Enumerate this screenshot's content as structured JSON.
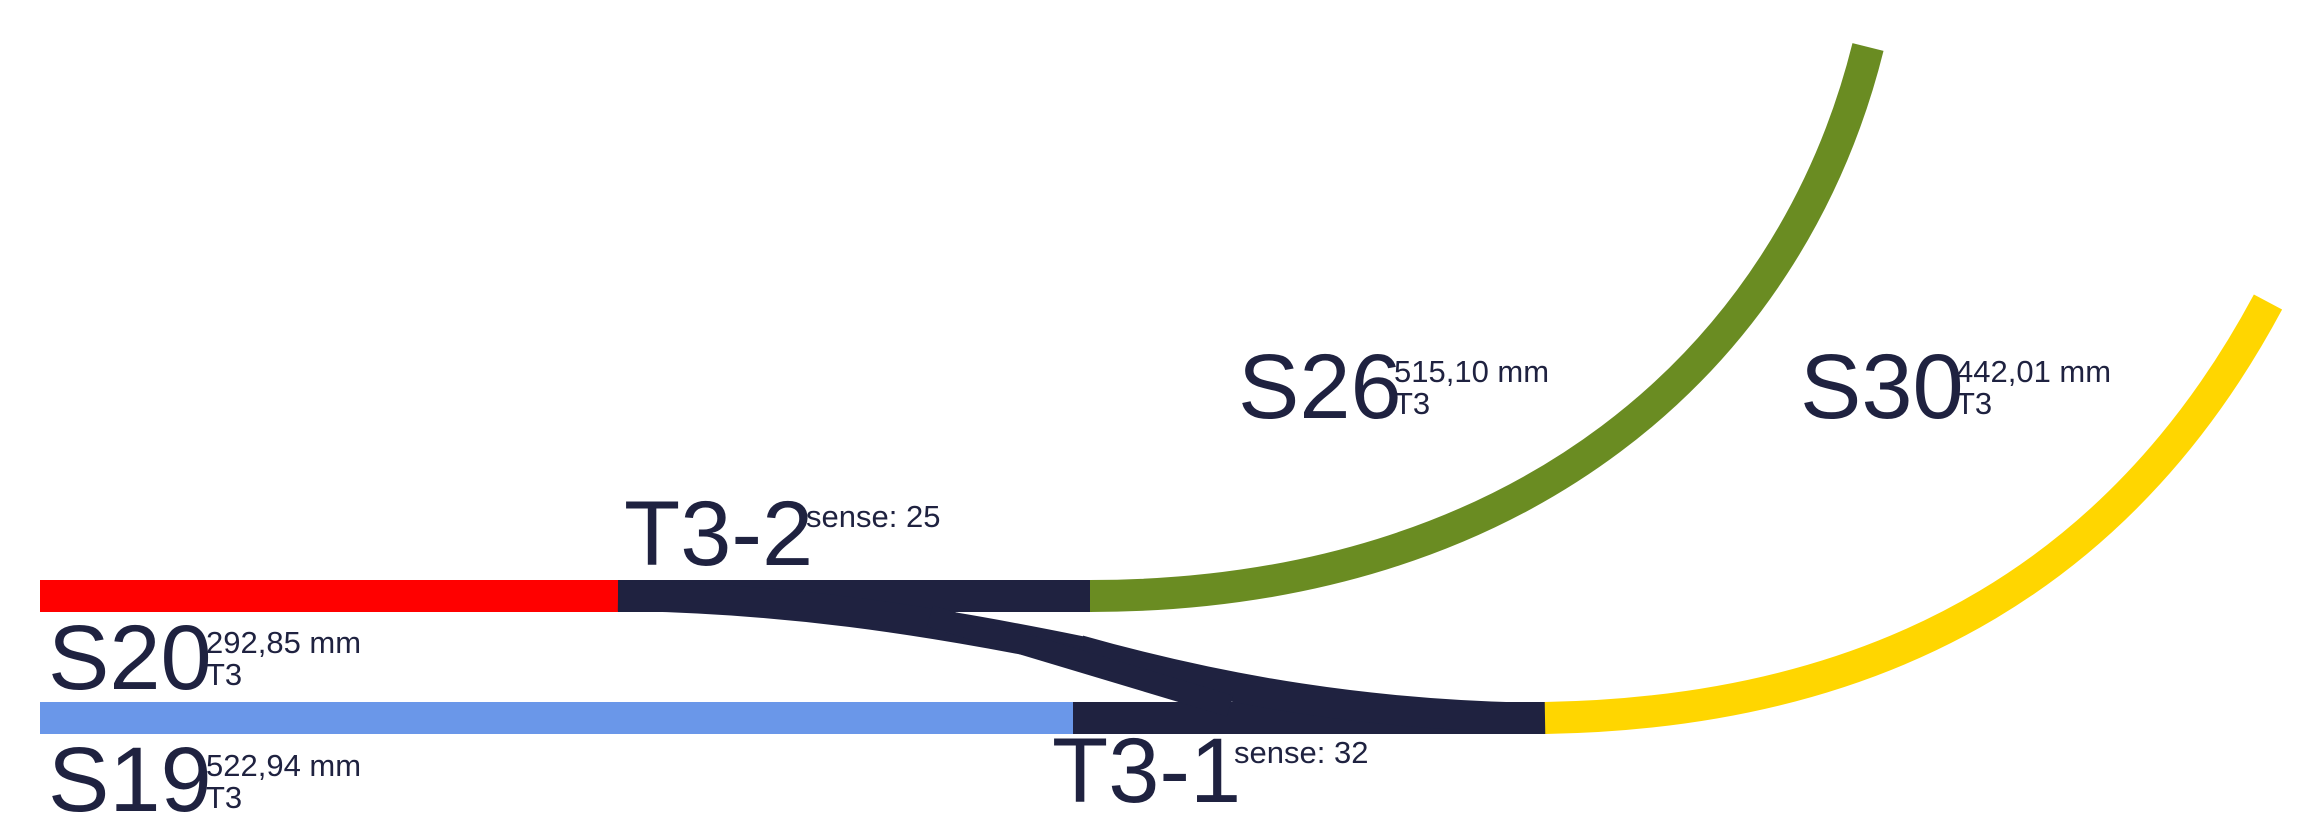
{
  "colors": {
    "ink": "#1f2240",
    "S20": "#ff0000",
    "S19": "#6a97e9",
    "S26": "#6a8c22",
    "S30": "#ffd600",
    "turnout": "#1f2240"
  },
  "segments": {
    "S20": {
      "name": "S20",
      "length": "292,85 mm",
      "group": "T3"
    },
    "S19": {
      "name": "S19",
      "length": "522,94 mm",
      "group": "T3"
    },
    "S26": {
      "name": "S26",
      "length": "515,10 mm",
      "group": "T3"
    },
    "S30": {
      "name": "S30",
      "length": "442,01 mm",
      "group": "T3"
    }
  },
  "turnouts": {
    "T3_2": {
      "name": "T3-2",
      "sense": "sense: 25"
    },
    "T3_1": {
      "name": "T3-1",
      "sense": "sense: 32"
    }
  }
}
